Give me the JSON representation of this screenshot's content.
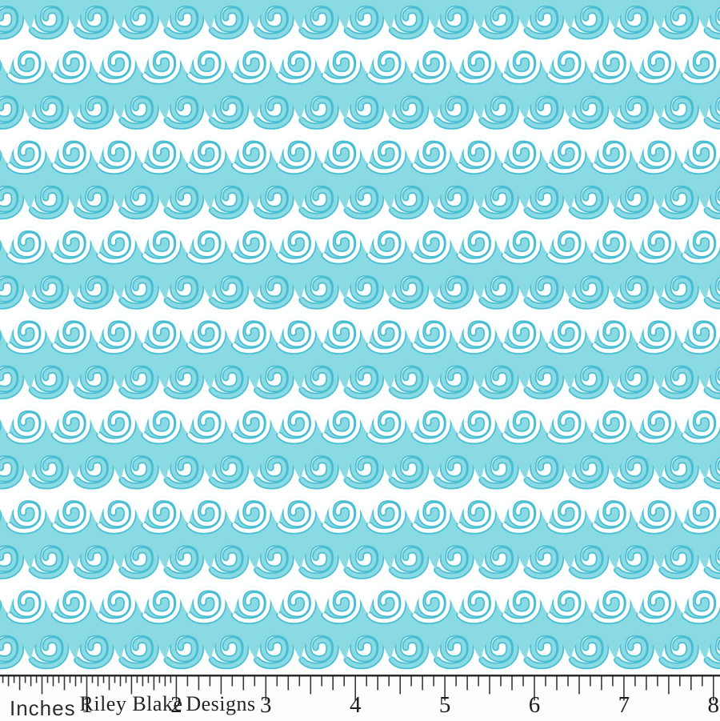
{
  "colors": {
    "aqua": "#8ADAE4",
    "aqua_dark": "#46BDD2",
    "white": "#FEFFFF",
    "tick": "#383838",
    "ruler_bg": "#FDFDFD"
  },
  "swatch": {
    "motif": "aqua-and-white-rolling-waves-with-spiral-curls"
  },
  "ruler": {
    "unit_label": "Inches",
    "brand_word_1": "Riley Blake",
    "brand_word_2": "Designs",
    "numbers": [
      "1",
      "2",
      "3",
      "4",
      "5",
      "6",
      "7",
      "8"
    ]
  }
}
